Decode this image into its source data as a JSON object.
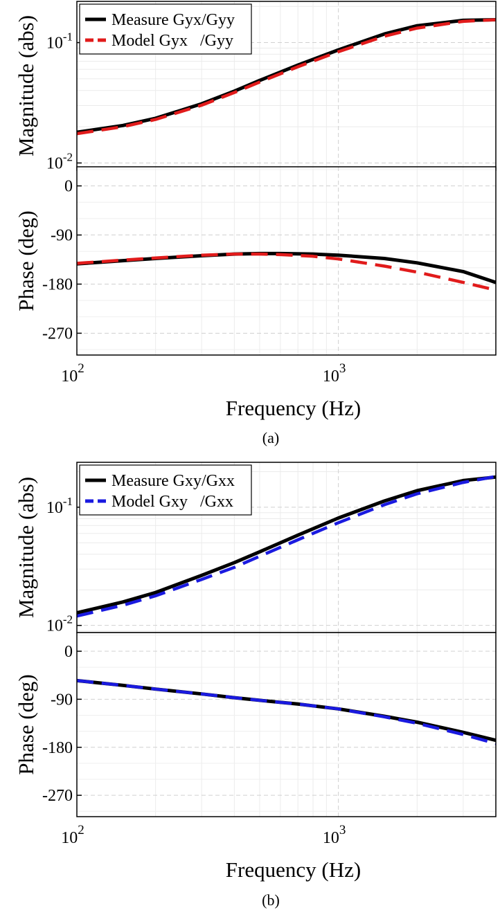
{
  "chart_data": [
    {
      "type": "line",
      "panel": "a-magnitude",
      "ylabel": "Magnitude (abs)",
      "yscale": "log",
      "xscale": "log",
      "xlim": [
        100,
        4000
      ],
      "ylim": [
        0.0087,
        0.22
      ],
      "yticks": [
        {
          "value": 0.01,
          "base": "10",
          "exp": "-2"
        },
        {
          "value": 0.1,
          "base": "10",
          "exp": "-1"
        }
      ],
      "grid": true,
      "legend": "top-left",
      "series": [
        {
          "name": "Measure Gyx/Gyy",
          "color": "#000000",
          "style": "solid",
          "x": [
            100,
            150,
            200,
            300,
            400,
            500,
            700,
            1000,
            1500,
            2000,
            3000,
            4000
          ],
          "y": [
            0.018,
            0.0205,
            0.0235,
            0.031,
            0.0395,
            0.0485,
            0.065,
            0.087,
            0.118,
            0.138,
            0.153,
            0.155
          ]
        },
        {
          "name": "Model Gyx   /Gyy",
          "color": "#e11b1b",
          "style": "dashed",
          "x": [
            100,
            150,
            200,
            300,
            400,
            500,
            700,
            1000,
            1500,
            2000,
            3000,
            4000
          ],
          "y": [
            0.0175,
            0.02,
            0.023,
            0.0302,
            0.0385,
            0.047,
            0.063,
            0.084,
            0.113,
            0.132,
            0.15,
            0.155
          ]
        }
      ]
    },
    {
      "type": "line",
      "panel": "a-phase",
      "ylabel": "Phase (deg)",
      "xlabel": "Frequency (Hz)",
      "xscale": "log",
      "xlim": [
        100,
        4000
      ],
      "ylim": [
        -310,
        35
      ],
      "yticks": [
        {
          "value": 0,
          "label": "0"
        },
        {
          "value": -90,
          "label": "-90"
        },
        {
          "value": -180,
          "label": "-180"
        },
        {
          "value": -270,
          "label": "-270"
        }
      ],
      "xticks": [
        {
          "value": 100,
          "base": "10",
          "exp": "2"
        },
        {
          "value": 1000,
          "base": "10",
          "exp": "3"
        }
      ],
      "grid": true,
      "series": [
        {
          "name": "Measure Gyx/Gyy",
          "color": "#000000",
          "style": "solid",
          "x": [
            100,
            150,
            200,
            300,
            400,
            500,
            600,
            800,
            1000,
            1500,
            2000,
            3000,
            4000
          ],
          "y": [
            -143,
            -137,
            -133,
            -128,
            -125,
            -124,
            -124,
            -125,
            -127,
            -133,
            -141,
            -157,
            -177
          ]
        },
        {
          "name": "Model Gyx   /Gyy",
          "color": "#e11b1b",
          "style": "dashed",
          "x": [
            100,
            150,
            200,
            300,
            400,
            500,
            600,
            800,
            1000,
            1500,
            2000,
            3000,
            4000
          ],
          "y": [
            -142,
            -136,
            -132,
            -127,
            -125,
            -125,
            -126,
            -129,
            -134,
            -147,
            -158,
            -177,
            -191
          ]
        }
      ]
    },
    {
      "type": "line",
      "panel": "b-magnitude",
      "ylabel": "Magnitude (abs)",
      "yscale": "log",
      "xscale": "log",
      "xlim": [
        100,
        4000
      ],
      "ylim": [
        0.0087,
        0.24
      ],
      "yticks": [
        {
          "value": 0.01,
          "base": "10",
          "exp": "-2"
        },
        {
          "value": 0.1,
          "base": "10",
          "exp": "-1"
        }
      ],
      "grid": true,
      "legend": "top-left",
      "series": [
        {
          "name": "Measure Gxy/Gxx",
          "color": "#000000",
          "style": "solid",
          "x": [
            100,
            150,
            200,
            300,
            400,
            500,
            700,
            1000,
            1500,
            2000,
            3000,
            4000
          ],
          "y": [
            0.0128,
            0.0158,
            0.019,
            0.0265,
            0.034,
            0.042,
            0.058,
            0.081,
            0.113,
            0.138,
            0.168,
            0.18
          ]
        },
        {
          "name": "Model Gxy   /Gxx",
          "color": "#1a1ae0",
          "style": "dashed",
          "x": [
            100,
            150,
            200,
            300,
            400,
            500,
            700,
            1000,
            1500,
            2000,
            3000,
            4000
          ],
          "y": [
            0.012,
            0.0148,
            0.0178,
            0.0245,
            0.031,
            0.0385,
            0.053,
            0.074,
            0.105,
            0.13,
            0.162,
            0.182
          ]
        }
      ]
    },
    {
      "type": "line",
      "panel": "b-phase",
      "ylabel": "Phase (deg)",
      "xlabel": "Frequency (Hz)",
      "xscale": "log",
      "xlim": [
        100,
        4000
      ],
      "ylim": [
        -310,
        35
      ],
      "yticks": [
        {
          "value": 0,
          "label": "0"
        },
        {
          "value": -90,
          "label": "-90"
        },
        {
          "value": -180,
          "label": "-180"
        },
        {
          "value": -270,
          "label": "-270"
        }
      ],
      "xticks": [
        {
          "value": 100,
          "base": "10",
          "exp": "2"
        },
        {
          "value": 1000,
          "base": "10",
          "exp": "3"
        }
      ],
      "grid": true,
      "series": [
        {
          "name": "Measure Gxy/Gxx",
          "color": "#000000",
          "style": "solid",
          "x": [
            100,
            150,
            200,
            300,
            400,
            500,
            700,
            1000,
            1500,
            2000,
            3000,
            4000
          ],
          "y": [
            -55,
            -64,
            -71,
            -80,
            -87,
            -92,
            -99,
            -108,
            -122,
            -133,
            -152,
            -167
          ]
        },
        {
          "name": "Model Gxy   /Gxx",
          "color": "#1a1ae0",
          "style": "dashed",
          "x": [
            100,
            150,
            200,
            300,
            400,
            500,
            700,
            1000,
            1500,
            2000,
            3000,
            4000
          ],
          "y": [
            -55,
            -64,
            -71,
            -80,
            -87,
            -92,
            -99,
            -108,
            -123,
            -135,
            -156,
            -173
          ]
        }
      ]
    }
  ],
  "captions": {
    "a": "(a)",
    "b": "(b)"
  }
}
